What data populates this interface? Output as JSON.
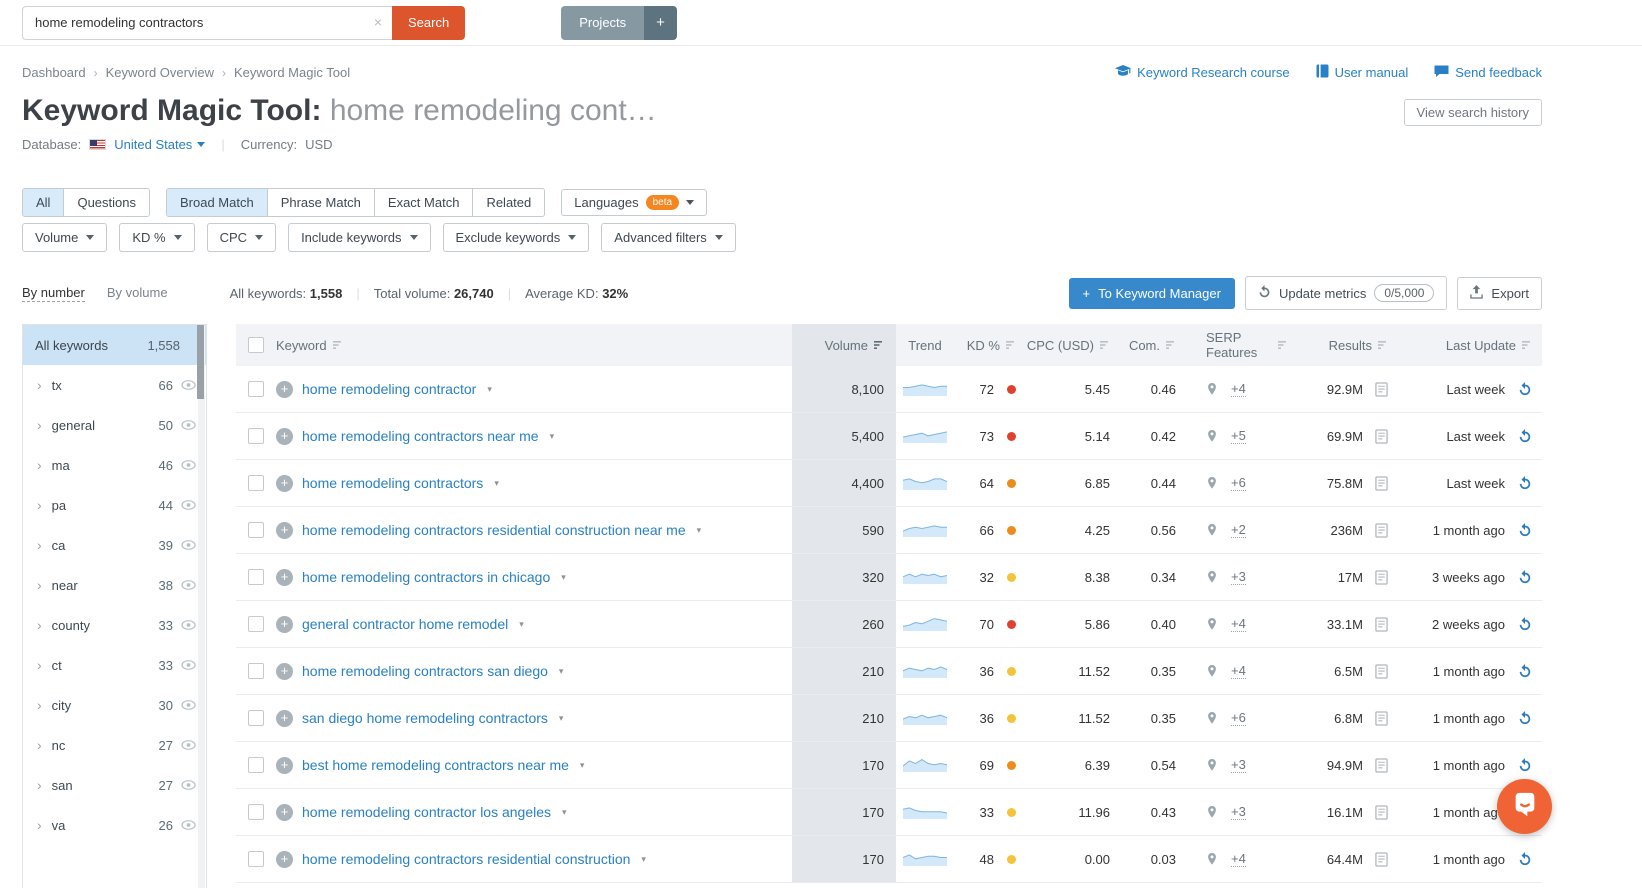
{
  "topbar": {
    "search_value": "home remodeling contractors",
    "search_button": "Search",
    "projects_button": "Projects",
    "add_button": "+"
  },
  "breadcrumb": {
    "items": [
      "Dashboard",
      "Keyword Overview",
      "Keyword Magic Tool"
    ]
  },
  "help_links": [
    {
      "label": "Keyword Research course",
      "icon": "graduation-cap-icon"
    },
    {
      "label": "User manual",
      "icon": "book-icon"
    },
    {
      "label": "Send feedback",
      "icon": "chat-bubble-icon"
    }
  ],
  "header": {
    "title": "Keyword Magic Tool:",
    "query": "home remodeling cont…",
    "view_history_button": "View search history",
    "database_label": "Database:",
    "database_value": "United States",
    "currency_label": "Currency:",
    "currency_value": "USD"
  },
  "match_tabs": {
    "group1": [
      "All",
      "Questions"
    ],
    "active1": "All",
    "group2": [
      "Broad Match",
      "Phrase Match",
      "Exact Match",
      "Related"
    ],
    "active2": "Broad Match",
    "languages_label": "Languages",
    "languages_badge": "beta"
  },
  "filters": [
    "Volume",
    "KD %",
    "CPC",
    "Include keywords",
    "Exclude keywords",
    "Advanced filters"
  ],
  "stats": {
    "by_number": "By number",
    "by_volume": "By volume",
    "all_keywords_label": "All keywords:",
    "all_keywords_value": "1,558",
    "total_volume_label": "Total volume:",
    "total_volume_value": "26,740",
    "average_kd_label": "Average KD:",
    "average_kd_value": "32%"
  },
  "actions": {
    "to_keyword_manager": "To Keyword Manager",
    "update_metrics": "Update metrics",
    "update_quota": "0/5,000",
    "export": "Export"
  },
  "sidebar": {
    "all_label": "All keywords",
    "all_count": "1,558",
    "groups": [
      {
        "name": "tx",
        "count": "66"
      },
      {
        "name": "general",
        "count": "50"
      },
      {
        "name": "ma",
        "count": "46"
      },
      {
        "name": "pa",
        "count": "44"
      },
      {
        "name": "ca",
        "count": "39"
      },
      {
        "name": "near",
        "count": "38"
      },
      {
        "name": "county",
        "count": "33"
      },
      {
        "name": "ct",
        "count": "33"
      },
      {
        "name": "city",
        "count": "30"
      },
      {
        "name": "nc",
        "count": "27"
      },
      {
        "name": "san",
        "count": "27"
      },
      {
        "name": "va",
        "count": "26"
      }
    ]
  },
  "table": {
    "columns": {
      "keyword": "Keyword",
      "volume": "Volume",
      "trend": "Trend",
      "kd": "KD %",
      "cpc": "CPC (USD)",
      "com": "Com.",
      "serp": "SERP Features",
      "results": "Results",
      "last_update": "Last Update"
    },
    "rows": [
      {
        "keyword": "home remodeling contractor",
        "volume": "8,100",
        "kd": "72",
        "kd_level": "red",
        "cpc": "5.45",
        "com": "0.46",
        "serp": "+4",
        "results": "92.9M",
        "updated": "Last week",
        "trend": [
          5,
          5,
          6,
          7,
          6,
          5,
          6,
          6
        ]
      },
      {
        "keyword": "home remodeling contractors near me",
        "volume": "5,400",
        "kd": "73",
        "kd_level": "red",
        "cpc": "5.14",
        "com": "0.42",
        "serp": "+5",
        "results": "69.9M",
        "updated": "Last week",
        "trend": [
          3,
          4,
          5,
          6,
          4,
          5,
          6,
          7
        ]
      },
      {
        "keyword": "home remodeling contractors",
        "volume": "4,400",
        "kd": "64",
        "kd_level": "orange",
        "cpc": "6.85",
        "com": "0.44",
        "serp": "+6",
        "results": "75.8M",
        "updated": "Last week",
        "trend": [
          6,
          7,
          5,
          4,
          5,
          7,
          7,
          5
        ]
      },
      {
        "keyword": "home remodeling contractors residential construction near me",
        "volume": "590",
        "kd": "66",
        "kd_level": "orange",
        "cpc": "4.25",
        "com": "0.56",
        "serp": "+2",
        "results": "236M",
        "updated": "1 month ago",
        "trend": [
          3,
          5,
          6,
          5,
          6,
          7,
          6,
          6
        ]
      },
      {
        "keyword": "home remodeling contractors in chicago",
        "volume": "320",
        "kd": "32",
        "kd_level": "yellow",
        "cpc": "8.38",
        "com": "0.34",
        "serp": "+3",
        "results": "17M",
        "updated": "3 weeks ago",
        "trend": [
          4,
          6,
          4,
          6,
          5,
          6,
          4,
          5
        ]
      },
      {
        "keyword": "general contractor home remodel",
        "volume": "260",
        "kd": "70",
        "kd_level": "red",
        "cpc": "5.86",
        "com": "0.40",
        "serp": "+4",
        "results": "33.1M",
        "updated": "2 weeks ago",
        "trend": [
          2,
          3,
          5,
          4,
          6,
          8,
          7,
          6
        ]
      },
      {
        "keyword": "home remodeling contractors san diego",
        "volume": "210",
        "kd": "36",
        "kd_level": "yellow",
        "cpc": "11.52",
        "com": "0.35",
        "serp": "+4",
        "results": "6.5M",
        "updated": "1 month ago",
        "trend": [
          4,
          6,
          5,
          4,
          6,
          5,
          7,
          5
        ]
      },
      {
        "keyword": "san diego home remodeling contractors",
        "volume": "210",
        "kd": "36",
        "kd_level": "yellow",
        "cpc": "11.52",
        "com": "0.35",
        "serp": "+6",
        "results": "6.8M",
        "updated": "1 month ago",
        "trend": [
          3,
          5,
          4,
          6,
          4,
          5,
          6,
          4
        ]
      },
      {
        "keyword": "best home remodeling contractors near me",
        "volume": "170",
        "kd": "69",
        "kd_level": "orange",
        "cpc": "6.39",
        "com": "0.54",
        "serp": "+3",
        "results": "94.9M",
        "updated": "1 month ago",
        "trend": [
          3,
          7,
          5,
          8,
          5,
          4,
          5,
          4
        ]
      },
      {
        "keyword": "home remodeling contractor los angeles",
        "volume": "170",
        "kd": "33",
        "kd_level": "yellow",
        "cpc": "11.96",
        "com": "0.43",
        "serp": "+3",
        "results": "16.1M",
        "updated": "1 month ago",
        "trend": [
          6,
          7,
          5,
          4,
          4,
          4,
          4,
          3
        ]
      },
      {
        "keyword": "home remodeling contractors residential construction",
        "volume": "170",
        "kd": "48",
        "kd_level": "yellow",
        "cpc": "0.00",
        "com": "0.03",
        "serp": "+4",
        "results": "64.4M",
        "updated": "1 month ago",
        "trend": [
          5,
          7,
          4,
          5,
          6,
          6,
          5,
          5
        ]
      }
    ]
  },
  "colors": {
    "accent_orange": "#dc552c",
    "link_blue": "#2980c4",
    "refresh_blue": "#2a7bc0",
    "kd_red": "#e0402e",
    "kd_orange": "#ef8a1c",
    "kd_yellow": "#f3c33b",
    "sparkline_fill": "#d3e8f8",
    "sparkline_stroke": "#7fb6e0"
  }
}
